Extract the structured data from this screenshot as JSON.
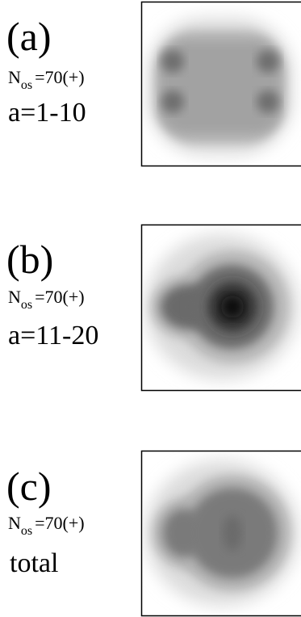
{
  "panels": [
    {
      "label": "(a)",
      "n_symbol": "N",
      "n_subscript": "os",
      "n_value": "=70(+)",
      "caption": "a=1-10"
    },
    {
      "label": "(b)",
      "n_symbol": "N",
      "n_subscript": "os",
      "n_value": "=70(+)",
      "caption": "a=11-20"
    },
    {
      "label": "(c)",
      "n_symbol": "N",
      "n_subscript": "os",
      "n_value": "=70(+)",
      "caption": "total"
    }
  ]
}
